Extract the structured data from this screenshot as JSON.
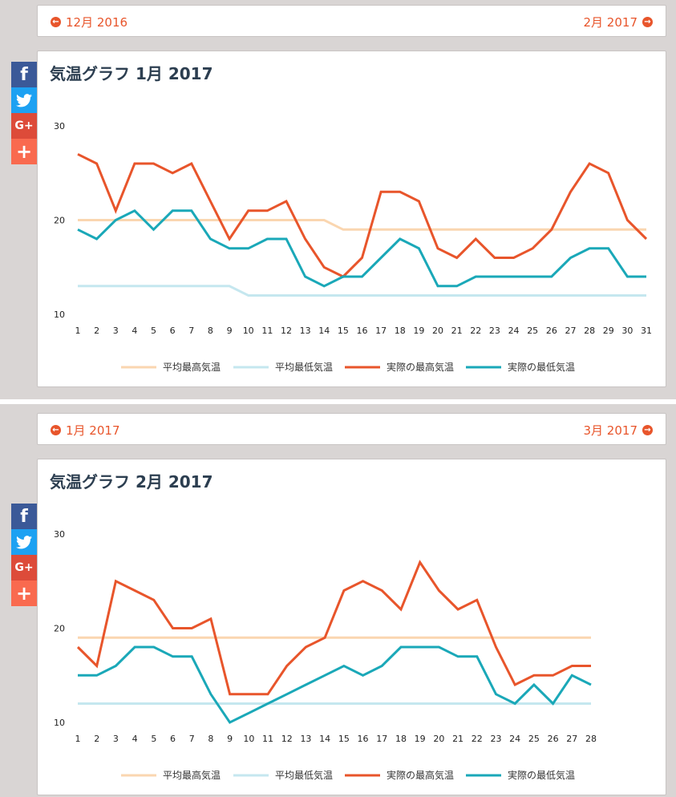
{
  "colors": {
    "avg_high": "#fad6b0",
    "avg_low": "#c5e7ef",
    "actual_high": "#e8552b",
    "actual_low": "#1aa8b8",
    "facebook": "#3b5998",
    "twitter": "#1da1f2",
    "google_plus": "#dd4b39",
    "share": "#f96a4f"
  },
  "social": [
    {
      "name": "facebook-icon",
      "glyph": "f"
    },
    {
      "name": "twitter-icon",
      "glyph": "bird"
    },
    {
      "name": "google-plus-icon",
      "glyph": "G+"
    },
    {
      "name": "share-plus-icon",
      "glyph": "+"
    }
  ],
  "sections": [
    {
      "nav": {
        "prev": "12月 2016",
        "next": "2月 2017"
      },
      "title": "気温グラフ 1月 2017",
      "chart_data": {
        "type": "line",
        "title": "気温グラフ 1月 2017",
        "x": [
          1,
          2,
          3,
          4,
          5,
          6,
          7,
          8,
          9,
          10,
          11,
          12,
          13,
          14,
          15,
          16,
          17,
          18,
          19,
          20,
          21,
          22,
          23,
          24,
          25,
          26,
          27,
          28,
          29,
          30,
          31
        ],
        "yticks": [
          30,
          20,
          10
        ],
        "ylim": [
          10,
          30
        ],
        "legend": "bottom",
        "series": [
          {
            "name": "平均最高気温",
            "key": "avg_high",
            "values": [
              20,
              20,
              20,
              20,
              20,
              20,
              20,
              20,
              20,
              20,
              20,
              20,
              20,
              20,
              19,
              19,
              19,
              19,
              19,
              19,
              19,
              19,
              19,
              19,
              19,
              19,
              19,
              19,
              19,
              19,
              19
            ]
          },
          {
            "name": "平均最低気温",
            "key": "avg_low",
            "values": [
              13,
              13,
              13,
              13,
              13,
              13,
              13,
              13,
              13,
              12,
              12,
              12,
              12,
              12,
              12,
              12,
              12,
              12,
              12,
              12,
              12,
              12,
              12,
              12,
              12,
              12,
              12,
              12,
              12,
              12,
              12
            ]
          },
          {
            "name": "実際の最高気温",
            "key": "actual_high",
            "values": [
              27,
              26,
              21,
              26,
              26,
              25,
              26,
              22,
              18,
              21,
              21,
              22,
              18,
              15,
              14,
              16,
              23,
              23,
              22,
              17,
              16,
              18,
              16,
              16,
              17,
              19,
              23,
              26,
              25,
              20,
              18
            ]
          },
          {
            "name": "実際の最低気温",
            "key": "actual_low",
            "values": [
              19,
              18,
              20,
              21,
              19,
              21,
              21,
              18,
              17,
              17,
              18,
              18,
              14,
              13,
              14,
              14,
              16,
              18,
              17,
              13,
              13,
              14,
              14,
              14,
              14,
              14,
              16,
              17,
              17,
              14,
              14
            ]
          }
        ]
      }
    },
    {
      "nav": {
        "prev": "1月 2017",
        "next": "3月 2017"
      },
      "title": "気温グラフ 2月 2017",
      "chart_data": {
        "type": "line",
        "title": "気温グラフ 2月 2017",
        "x": [
          1,
          2,
          3,
          4,
          5,
          6,
          7,
          8,
          9,
          10,
          11,
          12,
          13,
          14,
          15,
          16,
          17,
          18,
          19,
          20,
          21,
          22,
          23,
          24,
          25,
          26,
          27,
          28
        ],
        "yticks": [
          30,
          20,
          10
        ],
        "ylim": [
          10,
          30
        ],
        "legend": "bottom",
        "series": [
          {
            "name": "平均最高気温",
            "key": "avg_high",
            "values": [
              19,
              19,
              19,
              19,
              19,
              19,
              19,
              19,
              19,
              19,
              19,
              19,
              19,
              19,
              19,
              19,
              19,
              19,
              19,
              19,
              19,
              19,
              19,
              19,
              19,
              19,
              19,
              19
            ]
          },
          {
            "name": "平均最低気温",
            "key": "avg_low",
            "values": [
              12,
              12,
              12,
              12,
              12,
              12,
              12,
              12,
              12,
              12,
              12,
              12,
              12,
              12,
              12,
              12,
              12,
              12,
              12,
              12,
              12,
              12,
              12,
              12,
              12,
              12,
              12,
              12
            ]
          },
          {
            "name": "実際の最高気温",
            "key": "actual_high",
            "values": [
              18,
              16,
              25,
              24,
              23,
              20,
              20,
              21,
              13,
              13,
              13,
              16,
              18,
              19,
              24,
              25,
              24,
              22,
              27,
              24,
              22,
              23,
              18,
              14,
              15,
              15,
              16,
              16
            ]
          },
          {
            "name": "実際の最低気温",
            "key": "actual_low",
            "values": [
              15,
              15,
              16,
              18,
              18,
              17,
              17,
              13,
              10,
              11,
              12,
              13,
              14,
              15,
              16,
              15,
              16,
              18,
              18,
              18,
              17,
              17,
              13,
              12,
              14,
              12,
              15,
              14
            ]
          }
        ]
      }
    }
  ]
}
